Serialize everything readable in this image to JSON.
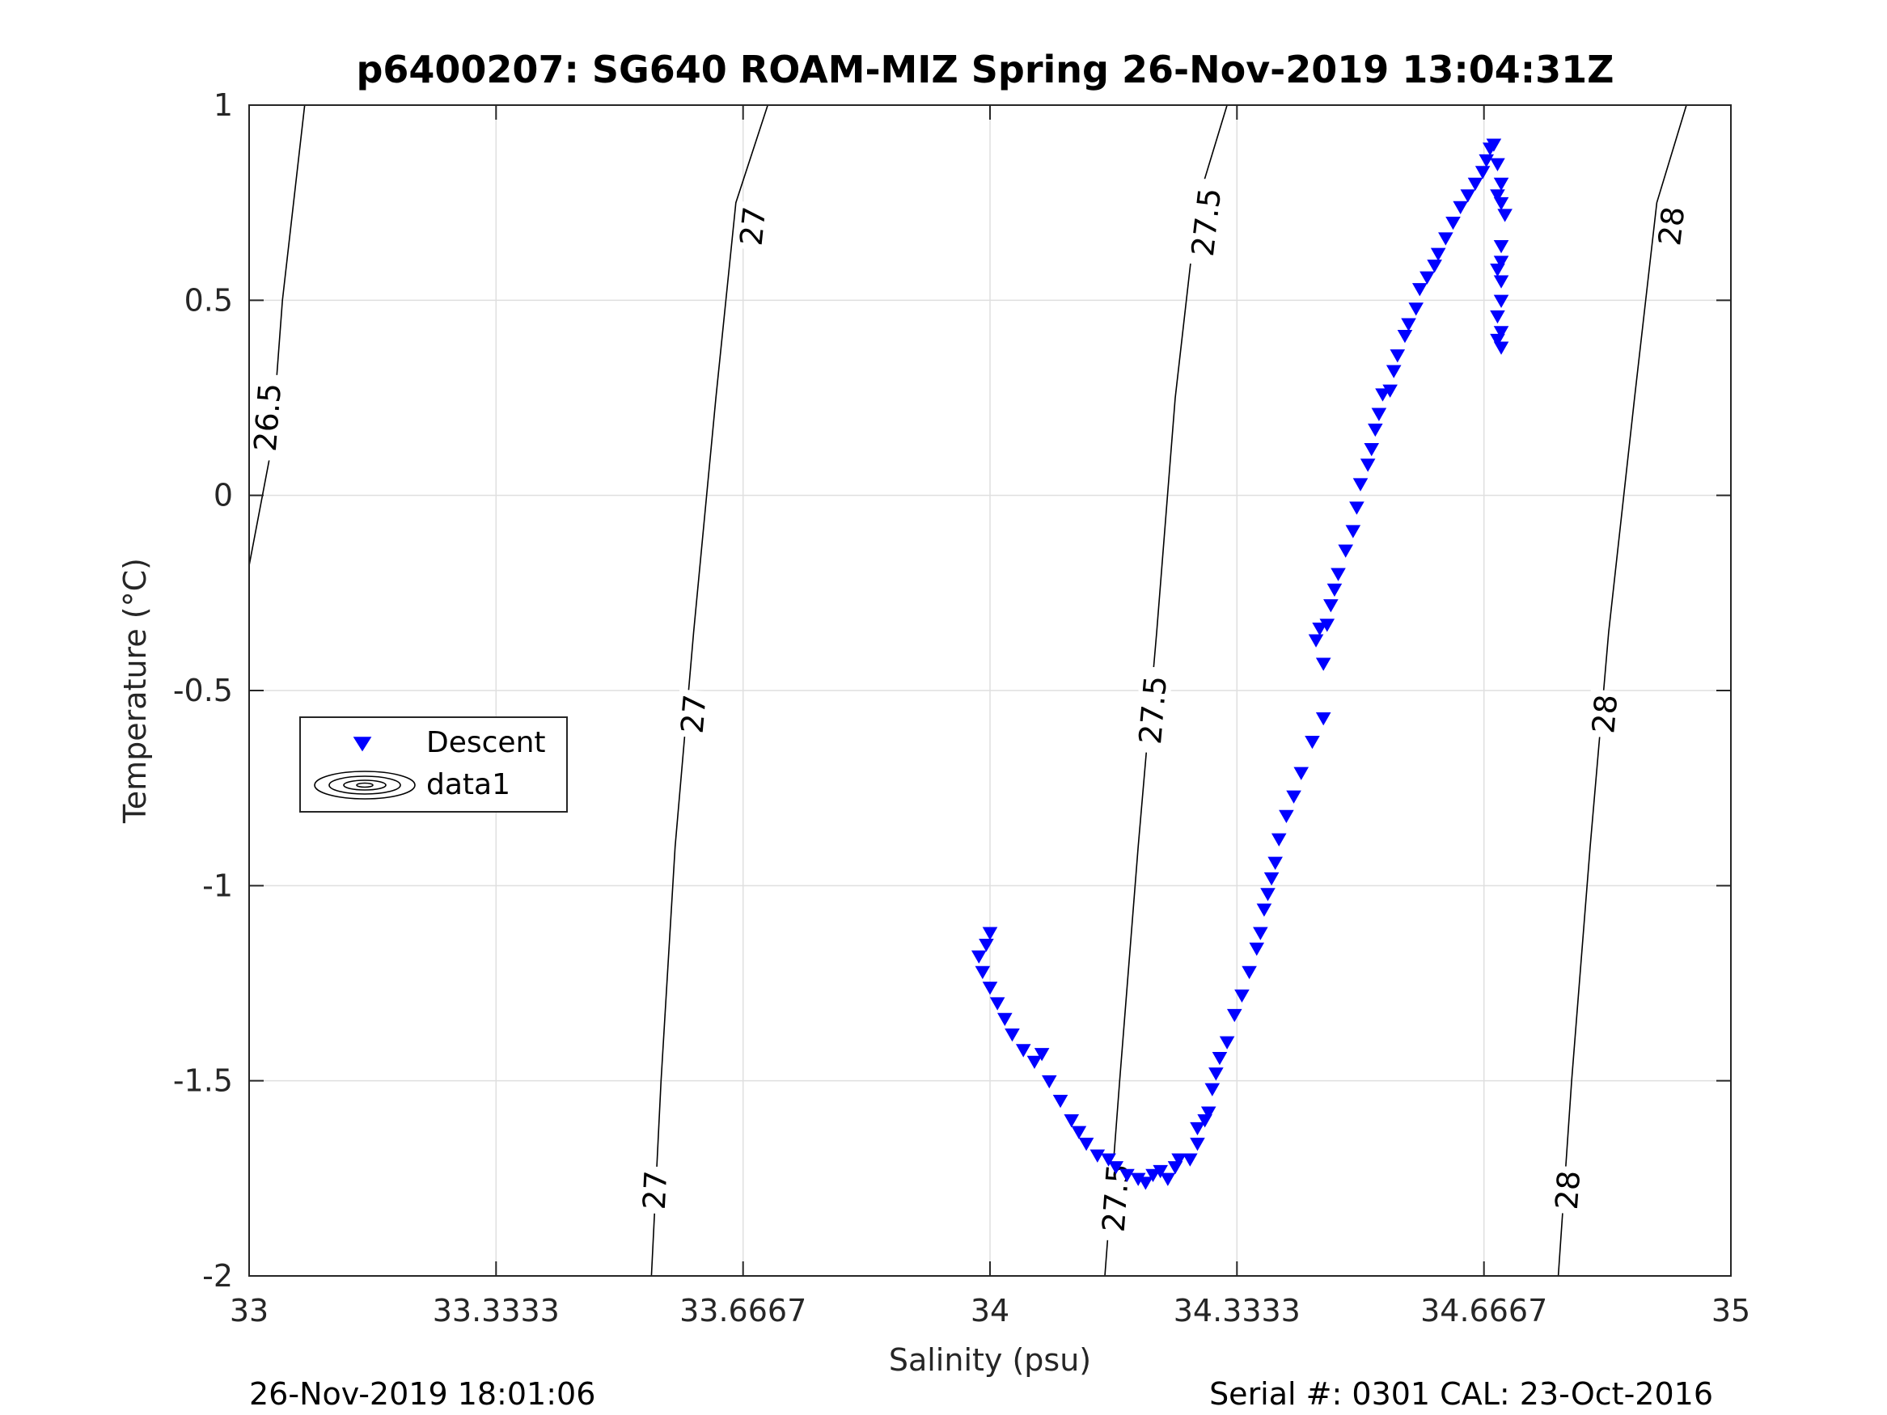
{
  "chart_data": {
    "type": "scatter",
    "title": "p6400207: SG640 ROAM-MIZ Spring 26-Nov-2019 13:04:31Z",
    "xlabel": "Salinity (psu)",
    "ylabel": "Temperature (°C)",
    "xlim": [
      33,
      35
    ],
    "ylim": [
      -2,
      1
    ],
    "x_ticks": [
      33,
      33.3333,
      33.6667,
      34,
      34.3333,
      34.6667,
      35
    ],
    "x_tick_labels": [
      "33",
      "33.3333",
      "33.6667",
      "34",
      "34.3333",
      "34.6667",
      "35"
    ],
    "y_ticks": [
      -2,
      -1.5,
      -1,
      -0.5,
      0,
      0.5,
      1
    ],
    "y_tick_labels": [
      "-2",
      "-1.5",
      "-1",
      "-0.5",
      "0",
      "0.5",
      "1"
    ],
    "grid": true,
    "legend_placement": "left",
    "series": [
      {
        "name": "Descent",
        "marker": "triangle-down",
        "color": "#0000ff",
        "points": [
          [
            34.0,
            -1.12
          ],
          [
            33.995,
            -1.15
          ],
          [
            33.985,
            -1.18
          ],
          [
            33.99,
            -1.22
          ],
          [
            34.0,
            -1.26
          ],
          [
            34.01,
            -1.3
          ],
          [
            34.02,
            -1.34
          ],
          [
            34.03,
            -1.38
          ],
          [
            34.045,
            -1.42
          ],
          [
            34.06,
            -1.45
          ],
          [
            34.07,
            -1.43
          ],
          [
            34.08,
            -1.5
          ],
          [
            34.095,
            -1.55
          ],
          [
            34.11,
            -1.6
          ],
          [
            34.12,
            -1.63
          ],
          [
            34.13,
            -1.66
          ],
          [
            34.145,
            -1.69
          ],
          [
            34.16,
            -1.7
          ],
          [
            34.17,
            -1.72
          ],
          [
            34.185,
            -1.74
          ],
          [
            34.2,
            -1.75
          ],
          [
            34.21,
            -1.76
          ],
          [
            34.22,
            -1.74
          ],
          [
            34.23,
            -1.73
          ],
          [
            34.24,
            -1.75
          ],
          [
            34.25,
            -1.72
          ],
          [
            34.255,
            -1.7
          ],
          [
            34.27,
            -1.7
          ],
          [
            34.28,
            -1.66
          ],
          [
            34.29,
            -1.6
          ],
          [
            34.28,
            -1.62
          ],
          [
            34.295,
            -1.58
          ],
          [
            34.3,
            -1.52
          ],
          [
            34.305,
            -1.48
          ],
          [
            34.31,
            -1.44
          ],
          [
            34.32,
            -1.4
          ],
          [
            34.33,
            -1.33
          ],
          [
            34.34,
            -1.28
          ],
          [
            34.35,
            -1.22
          ],
          [
            34.36,
            -1.16
          ],
          [
            34.365,
            -1.12
          ],
          [
            34.37,
            -1.06
          ],
          [
            34.375,
            -1.02
          ],
          [
            34.38,
            -0.98
          ],
          [
            34.385,
            -0.94
          ],
          [
            34.39,
            -0.88
          ],
          [
            34.4,
            -0.82
          ],
          [
            34.41,
            -0.77
          ],
          [
            34.42,
            -0.71
          ],
          [
            34.435,
            -0.63
          ],
          [
            34.45,
            -0.57
          ],
          [
            34.45,
            -0.43
          ],
          [
            34.44,
            -0.37
          ],
          [
            34.445,
            -0.34
          ],
          [
            34.455,
            -0.33
          ],
          [
            34.46,
            -0.28
          ],
          [
            34.465,
            -0.24
          ],
          [
            34.47,
            -0.2
          ],
          [
            34.48,
            -0.14
          ],
          [
            34.49,
            -0.09
          ],
          [
            34.495,
            -0.03
          ],
          [
            34.5,
            0.03
          ],
          [
            34.51,
            0.08
          ],
          [
            34.515,
            0.12
          ],
          [
            34.52,
            0.17
          ],
          [
            34.525,
            0.21
          ],
          [
            34.53,
            0.26
          ],
          [
            34.54,
            0.27
          ],
          [
            34.545,
            0.32
          ],
          [
            34.55,
            0.36
          ],
          [
            34.56,
            0.41
          ],
          [
            34.565,
            0.44
          ],
          [
            34.575,
            0.48
          ],
          [
            34.58,
            0.53
          ],
          [
            34.59,
            0.56
          ],
          [
            34.6,
            0.59
          ],
          [
            34.605,
            0.62
          ],
          [
            34.615,
            0.66
          ],
          [
            34.625,
            0.7
          ],
          [
            34.635,
            0.74
          ],
          [
            34.645,
            0.77
          ],
          [
            34.655,
            0.8
          ],
          [
            34.665,
            0.83
          ],
          [
            34.67,
            0.86
          ],
          [
            34.675,
            0.89
          ],
          [
            34.68,
            0.9
          ],
          [
            34.685,
            0.85
          ],
          [
            34.69,
            0.8
          ],
          [
            34.69,
            0.75
          ],
          [
            34.695,
            0.72
          ],
          [
            34.685,
            0.77
          ],
          [
            34.69,
            0.64
          ],
          [
            34.69,
            0.6
          ],
          [
            34.685,
            0.58
          ],
          [
            34.69,
            0.55
          ],
          [
            34.69,
            0.5
          ],
          [
            34.685,
            0.46
          ],
          [
            34.69,
            0.42
          ],
          [
            34.685,
            0.4
          ],
          [
            34.69,
            0.38
          ]
        ]
      },
      {
        "name": "data1",
        "type": "contour",
        "levels": [
          {
            "label": "26.5",
            "points": [
              [
                33.0,
                -0.18
              ],
              [
                33.03,
                0.12
              ],
              [
                33.045,
                0.5
              ],
              [
                33.075,
                1.0
              ]
            ],
            "labels_at": [
              [
                33.025,
                0.2
              ]
            ]
          },
          {
            "label": "27",
            "points": [
              [
                33.543,
                -2.0
              ],
              [
                33.556,
                -1.5
              ],
              [
                33.575,
                -0.9
              ],
              [
                33.6,
                -0.35
              ],
              [
                33.63,
                0.25
              ],
              [
                33.657,
                0.75
              ],
              [
                33.7,
                1.0
              ]
            ],
            "labels_at": [
              [
                33.548,
                -1.78
              ],
              [
                33.6,
                -0.56
              ],
              [
                33.68,
                0.69
              ]
            ]
          },
          {
            "label": "27.5",
            "points": [
              [
                34.155,
                -2.0
              ],
              [
                34.175,
                -1.5
              ],
              [
                34.2,
                -0.9
              ],
              [
                34.225,
                -0.35
              ],
              [
                34.25,
                0.25
              ],
              [
                34.28,
                0.75
              ],
              [
                34.32,
                1.0
              ]
            ],
            "labels_at": [
              [
                34.17,
                -1.8
              ],
              [
                34.22,
                -0.55
              ],
              [
                34.292,
                0.7
              ]
            ]
          },
          {
            "label": "28",
            "points": [
              [
                34.767,
                -2.0
              ],
              [
                34.785,
                -1.5
              ],
              [
                34.81,
                -0.9
              ],
              [
                34.835,
                -0.35
              ],
              [
                34.87,
                0.25
              ],
              [
                34.9,
                0.75
              ],
              [
                34.94,
                1.0
              ]
            ],
            "labels_at": [
              [
                34.78,
                -1.78
              ],
              [
                34.83,
                -0.56
              ],
              [
                34.92,
                0.69
              ]
            ]
          }
        ]
      }
    ]
  },
  "legend": {
    "descent_label": "Descent",
    "data1_label": "data1"
  },
  "footer": {
    "left": "26-Nov-2019 18:01:06",
    "right": "Serial #: 0301  CAL: 23-Oct-2016"
  }
}
